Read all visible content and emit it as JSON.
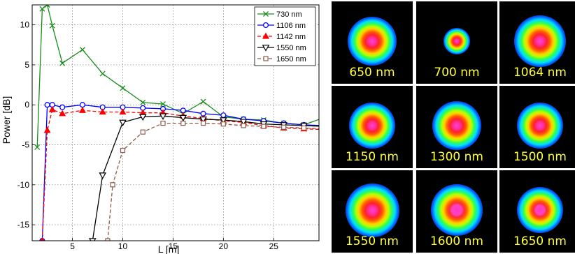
{
  "chart_data": {
    "type": "line",
    "xlabel": "L [m]",
    "ylabel": "Power [dB]",
    "xlim": [
      1,
      29.5
    ],
    "ylim": [
      -17,
      12.5
    ],
    "xticks": [
      5,
      10,
      15,
      20,
      25
    ],
    "yticks": [
      -15,
      -10,
      -5,
      0,
      5,
      10
    ],
    "grid": true,
    "legend_position": "top-right",
    "series": [
      {
        "name": "730 nm",
        "color": "#1a8c1a",
        "marker": "x",
        "dash": "solid",
        "x": [
          1.5,
          2,
          2.5,
          3,
          4,
          6,
          8,
          10,
          12,
          14,
          16,
          18,
          20,
          22,
          24,
          26,
          28,
          30
        ],
        "y": [
          -5.3,
          12,
          12.5,
          9.9,
          5.2,
          6.9,
          3.9,
          2.1,
          0.3,
          0.1,
          -1.1,
          0.4,
          -1.5,
          -1.8,
          -1.9,
          -2.3,
          -2.5,
          -1.6
        ]
      },
      {
        "name": "1106 nm",
        "color": "#0000ff",
        "marker": "o",
        "dash": "solid",
        "x": [
          2,
          2.5,
          3,
          4,
          6,
          8,
          10,
          12,
          14,
          16,
          18,
          20,
          22,
          24,
          26,
          28,
          30
        ],
        "y": [
          -17,
          0,
          0,
          -0.3,
          0,
          -0.3,
          -0.3,
          -0.4,
          -0.5,
          -0.7,
          -1.1,
          -1.3,
          -1.8,
          -2.0,
          -2.3,
          -2.5,
          -2.6
        ]
      },
      {
        "name": "1142 nm",
        "color": "#ff0000",
        "marker": "^",
        "dash": "dashed",
        "x": [
          2,
          2.5,
          3,
          4,
          6,
          8,
          10,
          12,
          14,
          16,
          18,
          20,
          22,
          24,
          26,
          28,
          30
        ],
        "y": [
          -17,
          -3.2,
          -0.6,
          -1.1,
          -0.7,
          -0.9,
          -0.9,
          -1.0,
          -1.0,
          -1.4,
          -1.7,
          -2.0,
          -2.2,
          -2.6,
          -2.9,
          -3.0,
          -3.1
        ]
      },
      {
        "name": "1550 nm",
        "color": "#000000",
        "marker": "v",
        "dash": "solid",
        "x": [
          7,
          8,
          10,
          12,
          14,
          16,
          18,
          20,
          22,
          24,
          26,
          28,
          30
        ],
        "y": [
          -17,
          -8.8,
          -2.2,
          -1.5,
          -1.4,
          -1.6,
          -1.8,
          -1.9,
          -2.1,
          -2.4,
          -2.5,
          -2.6,
          -2.7
        ]
      },
      {
        "name": "1650 nm",
        "color": "#8b5a4a",
        "marker": "s",
        "dash": "dashed",
        "x": [
          8.5,
          9,
          10,
          12,
          14,
          16,
          18,
          20,
          22,
          24,
          26,
          28,
          30
        ],
        "y": [
          -17,
          -10,
          -5.7,
          -3.4,
          -2.3,
          -2.3,
          -2.3,
          -2.4,
          -2.6,
          -2.7,
          -2.8,
          -2.9,
          -3.0
        ]
      }
    ]
  },
  "images": {
    "tiles": [
      {
        "label": "650 nm",
        "size": 1.0,
        "flat": false
      },
      {
        "label": "700 nm",
        "size": 0.55,
        "flat": false
      },
      {
        "label": "1064 nm",
        "size": 1.05,
        "flat": false
      },
      {
        "label": "1150 nm",
        "size": 0.95,
        "flat": false
      },
      {
        "label": "1300 nm",
        "size": 1.0,
        "flat": false
      },
      {
        "label": "1500 nm",
        "size": 0.95,
        "flat": false
      },
      {
        "label": "1550 nm",
        "size": 1.1,
        "flat": false
      },
      {
        "label": "1600 nm",
        "size": 1.05,
        "flat": true
      },
      {
        "label": "1650 nm",
        "size": 0.95,
        "flat": true
      }
    ]
  }
}
